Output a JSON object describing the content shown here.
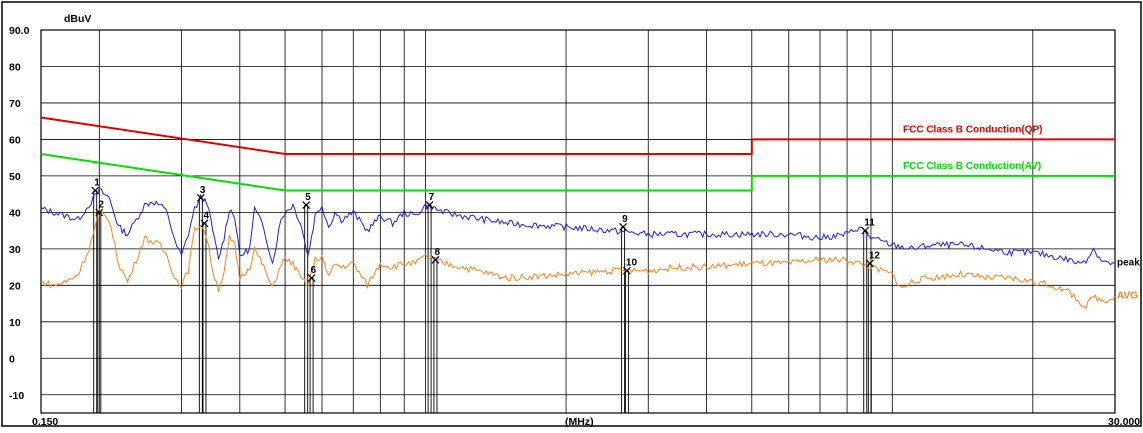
{
  "chart_data": {
    "type": "line",
    "unit_label": "dBuV",
    "xlabel": "(MHz)",
    "x_start_label": "0.150",
    "x_end_label": "30.000",
    "xlim": [
      0.15,
      30
    ],
    "x_scale": "log",
    "ylim": [
      -15,
      90
    ],
    "y_ticks": [
      {
        "value": 90,
        "label": "90.0"
      },
      {
        "value": 80,
        "label": "80"
      },
      {
        "value": 70,
        "label": "70"
      },
      {
        "value": 60,
        "label": "60"
      },
      {
        "value": 50,
        "label": "50"
      },
      {
        "value": 40,
        "label": "40"
      },
      {
        "value": 30,
        "label": "30"
      },
      {
        "value": 20,
        "label": "20"
      },
      {
        "value": 10,
        "label": "10"
      },
      {
        "value": 0,
        "label": "0"
      },
      {
        "value": -10,
        "label": "-10"
      }
    ],
    "limit_lines": [
      {
        "name": "FCC Class B Conduction(QP)",
        "color": "#dd0000",
        "points": [
          [
            0.15,
            66
          ],
          [
            0.5,
            56
          ],
          [
            5,
            56
          ],
          [
            5,
            60
          ],
          [
            30,
            60
          ]
        ]
      },
      {
        "name": "FCC Class B Conduction(AV)",
        "color": "#00dd00",
        "points": [
          [
            0.15,
            56
          ],
          [
            0.5,
            46
          ],
          [
            5,
            46
          ],
          [
            5,
            50
          ],
          [
            30,
            50
          ]
        ]
      }
    ],
    "series": [
      {
        "name": "peak",
        "color": "#2222cc",
        "points": [
          [
            0.15,
            41
          ],
          [
            0.16,
            40
          ],
          [
            0.17,
            39
          ],
          [
            0.18,
            38
          ],
          [
            0.19,
            42
          ],
          [
            0.2,
            46
          ],
          [
            0.21,
            44
          ],
          [
            0.22,
            36
          ],
          [
            0.23,
            34
          ],
          [
            0.24,
            38
          ],
          [
            0.25,
            42
          ],
          [
            0.26,
            43
          ],
          [
            0.27,
            42
          ],
          [
            0.28,
            40
          ],
          [
            0.29,
            32
          ],
          [
            0.3,
            28
          ],
          [
            0.31,
            34
          ],
          [
            0.32,
            41
          ],
          [
            0.33,
            44
          ],
          [
            0.34,
            43
          ],
          [
            0.35,
            35
          ],
          [
            0.36,
            27
          ],
          [
            0.37,
            33
          ],
          [
            0.38,
            41
          ],
          [
            0.39,
            39
          ],
          [
            0.4,
            28
          ],
          [
            0.42,
            30
          ],
          [
            0.43,
            41
          ],
          [
            0.45,
            36
          ],
          [
            0.47,
            26
          ],
          [
            0.49,
            38
          ],
          [
            0.5,
            40
          ],
          [
            0.52,
            42
          ],
          [
            0.54,
            37
          ],
          [
            0.56,
            28
          ],
          [
            0.58,
            39
          ],
          [
            0.6,
            42
          ],
          [
            0.62,
            36
          ],
          [
            0.64,
            40
          ],
          [
            0.66,
            38
          ],
          [
            0.7,
            40
          ],
          [
            0.75,
            35
          ],
          [
            0.8,
            39
          ],
          [
            0.85,
            37
          ],
          [
            0.9,
            40
          ],
          [
            0.95,
            39
          ],
          [
            1,
            42
          ],
          [
            1.1,
            40
          ],
          [
            1.2,
            39
          ],
          [
            1.5,
            37
          ],
          [
            2,
            36
          ],
          [
            2.5,
            35
          ],
          [
            3,
            34
          ],
          [
            3.5,
            34
          ],
          [
            4,
            34
          ],
          [
            4.5,
            34
          ],
          [
            5,
            34
          ],
          [
            6,
            34
          ],
          [
            7,
            33
          ],
          [
            8,
            34
          ],
          [
            8.5,
            36
          ],
          [
            9,
            33
          ],
          [
            10,
            31
          ],
          [
            11,
            30
          ],
          [
            12,
            31
          ],
          [
            14,
            31
          ],
          [
            16,
            30
          ],
          [
            18,
            29
          ],
          [
            20,
            29
          ],
          [
            22,
            28
          ],
          [
            24,
            27
          ],
          [
            25,
            26
          ],
          [
            26,
            27
          ],
          [
            27,
            30
          ],
          [
            28,
            27
          ],
          [
            29,
            26
          ],
          [
            30,
            26
          ]
        ]
      },
      {
        "name": "AVG",
        "color": "#ee8822",
        "points": [
          [
            0.15,
            21
          ],
          [
            0.16,
            20
          ],
          [
            0.17,
            21
          ],
          [
            0.18,
            23
          ],
          [
            0.19,
            30
          ],
          [
            0.2,
            40
          ],
          [
            0.21,
            38
          ],
          [
            0.22,
            26
          ],
          [
            0.23,
            21
          ],
          [
            0.24,
            27
          ],
          [
            0.25,
            33
          ],
          [
            0.26,
            32
          ],
          [
            0.27,
            31
          ],
          [
            0.28,
            28
          ],
          [
            0.29,
            22
          ],
          [
            0.3,
            20
          ],
          [
            0.31,
            24
          ],
          [
            0.32,
            35
          ],
          [
            0.33,
            37
          ],
          [
            0.34,
            33
          ],
          [
            0.35,
            24
          ],
          [
            0.36,
            19
          ],
          [
            0.37,
            23
          ],
          [
            0.38,
            33
          ],
          [
            0.39,
            31
          ],
          [
            0.4,
            22
          ],
          [
            0.42,
            25
          ],
          [
            0.43,
            30
          ],
          [
            0.45,
            25
          ],
          [
            0.47,
            19
          ],
          [
            0.49,
            26
          ],
          [
            0.5,
            27
          ],
          [
            0.52,
            26
          ],
          [
            0.54,
            22
          ],
          [
            0.56,
            20
          ],
          [
            0.58,
            27
          ],
          [
            0.6,
            28
          ],
          [
            0.62,
            22
          ],
          [
            0.64,
            26
          ],
          [
            0.66,
            25
          ],
          [
            0.7,
            26
          ],
          [
            0.75,
            20
          ],
          [
            0.8,
            26
          ],
          [
            0.85,
            25
          ],
          [
            0.9,
            26
          ],
          [
            0.95,
            26
          ],
          [
            1,
            28
          ],
          [
            1.1,
            26
          ],
          [
            1.2,
            25
          ],
          [
            1.5,
            22
          ],
          [
            2,
            23
          ],
          [
            2.5,
            24
          ],
          [
            3,
            24
          ],
          [
            3.5,
            25
          ],
          [
            4,
            25
          ],
          [
            5,
            26
          ],
          [
            6,
            26
          ],
          [
            7,
            27
          ],
          [
            8,
            27
          ],
          [
            8.5,
            26
          ],
          [
            9,
            25
          ],
          [
            10,
            23
          ],
          [
            10.5,
            19
          ],
          [
            11,
            21
          ],
          [
            12,
            22
          ],
          [
            14,
            23
          ],
          [
            16,
            22
          ],
          [
            18,
            22
          ],
          [
            20,
            21
          ],
          [
            22,
            20
          ],
          [
            24,
            18
          ],
          [
            25,
            16
          ],
          [
            26,
            14
          ],
          [
            27,
            17
          ],
          [
            28,
            16
          ],
          [
            29,
            16
          ],
          [
            30,
            17
          ]
        ]
      }
    ],
    "markers": [
      {
        "label": "1",
        "x": 0.196,
        "y": 46
      },
      {
        "label": "2",
        "x": 0.2,
        "y": 40
      },
      {
        "label": "3",
        "x": 0.33,
        "y": 44
      },
      {
        "label": "4",
        "x": 0.336,
        "y": 37
      },
      {
        "label": "5",
        "x": 0.555,
        "y": 42
      },
      {
        "label": "6",
        "x": 0.57,
        "y": 22
      },
      {
        "label": "7",
        "x": 1.02,
        "y": 42
      },
      {
        "label": "8",
        "x": 1.05,
        "y": 27
      },
      {
        "label": "9",
        "x": 2.65,
        "y": 36
      },
      {
        "label": "10",
        "x": 2.7,
        "y": 24
      },
      {
        "label": "11",
        "x": 8.75,
        "y": 35
      },
      {
        "label": "12",
        "x": 8.95,
        "y": 26
      }
    ],
    "grid": true
  }
}
